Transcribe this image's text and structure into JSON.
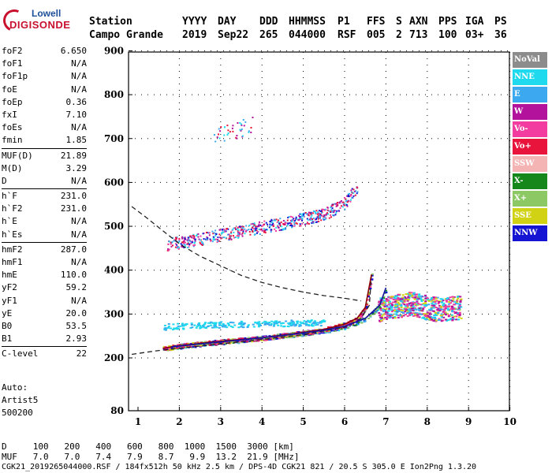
{
  "logo": {
    "line1": "Lowell",
    "line2": "DIGISONDE"
  },
  "header": {
    "row1": [
      "Station",
      "YYYY",
      "DAY",
      "DDD",
      "HHMMSS",
      "P1",
      "FFS",
      "S",
      "AXN",
      "PPS",
      "IGA",
      "PS"
    ],
    "row2": [
      "Campo Grande",
      "2019",
      "Sep22",
      "265",
      "044000",
      "RSF",
      "005",
      "2",
      "713",
      "100",
      "03+",
      "36"
    ]
  },
  "params": {
    "group1": [
      {
        "k": "foF2",
        "v": "6.650"
      },
      {
        "k": "foF1",
        "v": "N/A"
      },
      {
        "k": "foF1p",
        "v": "N/A"
      },
      {
        "k": "foE",
        "v": "N/A"
      },
      {
        "k": "foEp",
        "v": "0.36"
      },
      {
        "k": "fxI",
        "v": "7.10"
      },
      {
        "k": "foEs",
        "v": "N/A"
      },
      {
        "k": "fmin",
        "v": "1.85"
      }
    ],
    "group2": [
      {
        "k": "MUF(D)",
        "v": "21.89"
      },
      {
        "k": "M(D)",
        "v": "3.29"
      },
      {
        "k": "D",
        "v": "N/A"
      }
    ],
    "group3": [
      {
        "k": "h`F",
        "v": "231.0"
      },
      {
        "k": "h`F2",
        "v": "231.0"
      },
      {
        "k": "h`E",
        "v": "N/A"
      },
      {
        "k": "h`Es",
        "v": "N/A"
      }
    ],
    "group4": [
      {
        "k": "hmF2",
        "v": "287.0"
      },
      {
        "k": "hmF1",
        "v": "N/A"
      },
      {
        "k": "hmE",
        "v": "110.0"
      },
      {
        "k": "yF2",
        "v": "59.2"
      },
      {
        "k": "yF1",
        "v": "N/A"
      },
      {
        "k": "yE",
        "v": "20.0"
      },
      {
        "k": "B0",
        "v": "53.5"
      },
      {
        "k": "B1",
        "v": "2.93"
      }
    ],
    "group5": [
      {
        "k": "C-level",
        "v": "22"
      }
    ]
  },
  "auto": {
    "line1": "Auto:",
    "line2": "Artist5",
    "line3": "500200"
  },
  "legend": [
    {
      "label": "NoVal",
      "color": "#8c8c8c"
    },
    {
      "label": "NNE",
      "color": "#1fd9ee"
    },
    {
      "label": "E",
      "color": "#3ca8f0"
    },
    {
      "label": "W",
      "color": "#b2129c"
    },
    {
      "label": "Vo-",
      "color": "#f23ca0"
    },
    {
      "label": "Vo+",
      "color": "#e8143c"
    },
    {
      "label": "SSW",
      "color": "#f5b4b4"
    },
    {
      "label": "X-",
      "color": "#16871a"
    },
    {
      "label": "X+",
      "color": "#8cc864"
    },
    {
      "label": "SSE",
      "color": "#d2d214"
    },
    {
      "label": "NNW",
      "color": "#1414d2"
    }
  ],
  "footer": {
    "line1": "D     100   200   400   600   800  1000  1500  3000 [km]",
    "line2": "MUF   7.0   7.0   7.4   7.9   8.7   9.9  13.2  21.9 [MHz]",
    "line3": "CGK21_2019265044000.RSF / 184fx512h 50 kHz 2.5 km / DPS-4D CGK21 821 / 20.5 S 305.0 E Ion2Png 1.3.20"
  },
  "chart_data": {
    "type": "scatter",
    "x_ticks": [
      "1",
      "2",
      "3",
      "4",
      "5",
      "6",
      "7",
      "8",
      "9",
      "10"
    ],
    "y_ticks": [
      "900",
      "800",
      "700",
      "600",
      "500",
      "400",
      "300",
      "200",
      "80"
    ],
    "xlim": [
      0.85,
      10.0
    ],
    "ylim_note": "axis labeled 80 at bottom, then 200..900 linear",
    "traces": [
      {
        "name": "O-trace F2",
        "x": [
          1.6,
          2.0,
          3.0,
          4.0,
          5.0,
          5.5,
          6.0,
          6.3,
          6.5,
          6.65
        ],
        "y": [
          222,
          228,
          238,
          246,
          258,
          265,
          277,
          290,
          315,
          390
        ]
      },
      {
        "name": "X-trace F2",
        "x": [
          1.8,
          2.5,
          3.5,
          4.5,
          5.5,
          6.0,
          6.5,
          6.85,
          7.0
        ],
        "y": [
          225,
          232,
          241,
          251,
          263,
          272,
          290,
          320,
          360
        ]
      },
      {
        "name": "second hop",
        "x": [
          1.7,
          2.5,
          3.5,
          4.5,
          5.5,
          6.0,
          6.3
        ],
        "y": [
          460,
          472,
          490,
          508,
          528,
          555,
          590
        ]
      },
      {
        "name": "third hop",
        "x": [
          2.8,
          3.0,
          3.5,
          3.8
        ],
        "y": [
          700,
          710,
          725,
          735
        ]
      },
      {
        "name": "spread F",
        "x": [
          6.8,
          7.2,
          7.6,
          8.0,
          8.4,
          8.8
        ],
        "y": [
          310,
          320,
          325,
          315,
          310,
          318
        ]
      },
      {
        "name": "oblique trace",
        "x": [
          1.6,
          2.5,
          3.5,
          4.5,
          5.5
        ],
        "y": [
          272,
          276,
          278,
          280,
          282
        ]
      }
    ],
    "profile_curve": {
      "x": [
        0.85,
        1.2,
        1.6,
        2.0,
        2.5,
        3.0,
        3.5,
        4.0,
        4.5,
        5.0,
        5.5,
        6.0,
        6.4
      ],
      "y": [
        545,
        520,
        490,
        460,
        432,
        410,
        388,
        372,
        360,
        350,
        342,
        336,
        330
      ]
    },
    "true_height_curve": {
      "x": [
        0.85,
        1.2,
        1.6,
        2.0,
        3.0,
        4.0,
        5.0,
        6.0,
        6.4,
        6.6,
        6.65
      ],
      "y": [
        208,
        213,
        218,
        222,
        232,
        242,
        253,
        270,
        290,
        320,
        390
      ]
    }
  }
}
